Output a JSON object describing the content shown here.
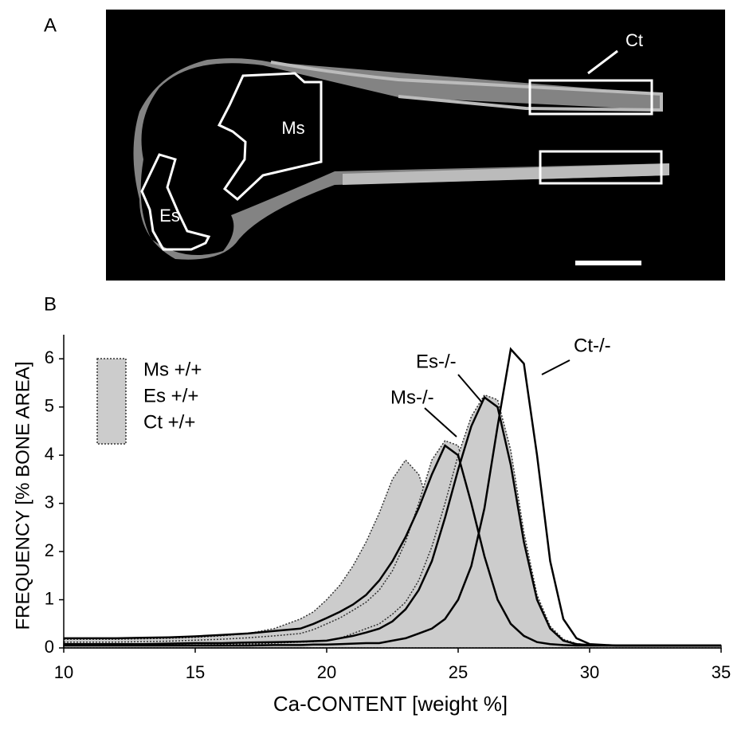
{
  "panel_a": {
    "label": "A",
    "regions": [
      "Ct",
      "Ms",
      "Es"
    ]
  },
  "chart_data": {
    "type": "line",
    "panel_label": "B",
    "x_label": "Ca-CONTENT  [weight %]",
    "y_label": "FREQUENCY [% BONE AREA]",
    "xlim": [
      10,
      35
    ],
    "xticks": [
      10,
      15,
      20,
      25,
      30,
      35
    ],
    "ylim": [
      0,
      6.5
    ],
    "yticks": [
      0,
      1,
      2,
      3,
      4,
      5,
      6
    ],
    "x": [
      10,
      11,
      12,
      13,
      14,
      15,
      16,
      17,
      18,
      19,
      19.5,
      20,
      20.5,
      21,
      21.5,
      22,
      22.5,
      23,
      23.5,
      24,
      24.5,
      25,
      25.5,
      26,
      26.5,
      27,
      27.5,
      28,
      28.5,
      29,
      29.5,
      30,
      31,
      32,
      33,
      34,
      35
    ],
    "series": [
      {
        "name": "Ms +/+",
        "style": "area",
        "color": "#cccccc",
        "values": [
          0.18,
          0.18,
          0.18,
          0.19,
          0.2,
          0.22,
          0.25,
          0.3,
          0.4,
          0.6,
          0.75,
          1.0,
          1.3,
          1.7,
          2.2,
          2.8,
          3.5,
          3.9,
          3.6,
          2.8,
          1.8,
          1.0,
          0.5,
          0.25,
          0.12,
          0.08,
          0.05,
          0.05,
          0.05,
          0.05,
          0.05,
          0.05,
          0.05,
          0.05,
          0.05,
          0.05,
          0.05
        ]
      },
      {
        "name": "Es +/+",
        "style": "area",
        "color": "#cccccc",
        "values": [
          0.12,
          0.12,
          0.12,
          0.13,
          0.14,
          0.16,
          0.18,
          0.21,
          0.25,
          0.3,
          0.38,
          0.5,
          0.62,
          0.78,
          0.95,
          1.2,
          1.6,
          2.2,
          3.0,
          3.9,
          4.3,
          4.2,
          3.2,
          2.0,
          1.0,
          0.45,
          0.2,
          0.1,
          0.06,
          0.05,
          0.05,
          0.05,
          0.05,
          0.05,
          0.05,
          0.05,
          0.05
        ]
      },
      {
        "name": "Ct +/+",
        "style": "area",
        "color": "#cccccc",
        "values": [
          0.05,
          0.05,
          0.05,
          0.05,
          0.06,
          0.06,
          0.07,
          0.08,
          0.1,
          0.12,
          0.13,
          0.15,
          0.2,
          0.3,
          0.4,
          0.5,
          0.7,
          0.95,
          1.4,
          2.1,
          3.0,
          4.0,
          4.8,
          5.25,
          5.15,
          4.1,
          2.4,
          1.1,
          0.45,
          0.18,
          0.09,
          0.06,
          0.05,
          0.05,
          0.05,
          0.05,
          0.05
        ]
      },
      {
        "name": "Ms-/-",
        "style": "line",
        "color": "#000000",
        "values": [
          0.2,
          0.2,
          0.2,
          0.21,
          0.22,
          0.24,
          0.27,
          0.3,
          0.35,
          0.4,
          0.5,
          0.62,
          0.75,
          0.9,
          1.1,
          1.4,
          1.8,
          2.3,
          2.9,
          3.6,
          4.2,
          4.0,
          3.0,
          1.9,
          1.0,
          0.5,
          0.25,
          0.12,
          0.08,
          0.06,
          0.05,
          0.05,
          0.05,
          0.05,
          0.05,
          0.05,
          0.05
        ]
      },
      {
        "name": "Es-/-",
        "style": "line",
        "color": "#000000",
        "values": [
          0.08,
          0.08,
          0.08,
          0.08,
          0.09,
          0.1,
          0.1,
          0.11,
          0.12,
          0.13,
          0.14,
          0.15,
          0.2,
          0.25,
          0.32,
          0.4,
          0.55,
          0.8,
          1.2,
          1.8,
          2.7,
          3.7,
          4.6,
          5.2,
          5.0,
          3.8,
          2.2,
          1.0,
          0.4,
          0.15,
          0.08,
          0.06,
          0.05,
          0.05,
          0.05,
          0.05,
          0.05
        ]
      },
      {
        "name": "Ct-/-",
        "style": "line",
        "color": "#000000",
        "values": [
          0.05,
          0.05,
          0.05,
          0.05,
          0.05,
          0.05,
          0.05,
          0.05,
          0.06,
          0.06,
          0.07,
          0.07,
          0.08,
          0.09,
          0.1,
          0.1,
          0.15,
          0.2,
          0.3,
          0.4,
          0.6,
          1.0,
          1.7,
          2.9,
          4.6,
          6.2,
          5.9,
          4.0,
          1.8,
          0.6,
          0.2,
          0.08,
          0.05,
          0.05,
          0.05,
          0.05,
          0.05
        ]
      }
    ]
  }
}
